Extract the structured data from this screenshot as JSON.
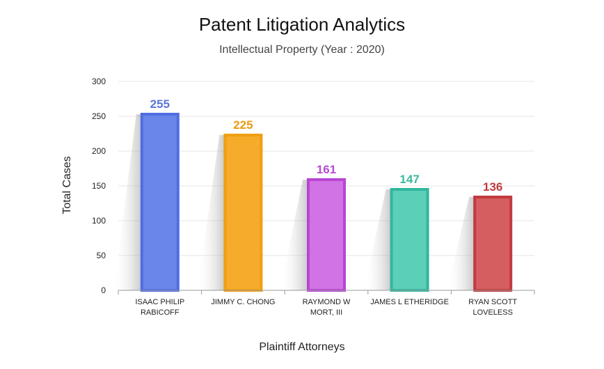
{
  "chart_data": {
    "type": "bar",
    "title": "Patent Litigation Analytics",
    "subtitle": "Intellectual Property (Year : 2020)",
    "xlabel": "Plaintiff Attorneys",
    "ylabel": "Total Cases",
    "categories": [
      [
        "ISAAC PHILIP",
        "RABICOFF"
      ],
      [
        "JIMMY C. CHONG"
      ],
      [
        "RAYMOND W",
        "MORT, III"
      ],
      [
        "JAMES L ETHERIDGE"
      ],
      [
        "RYAN SCOTT",
        "LOVELESS"
      ]
    ],
    "values": [
      255,
      225,
      161,
      147,
      136
    ],
    "ylim": [
      0,
      300
    ],
    "yticks": [
      0,
      50,
      100,
      150,
      200,
      250,
      300
    ],
    "grid": true,
    "colors": [
      {
        "fill": "#6b86ea",
        "stroke": "#4f6ee0",
        "label": "#5a74d8"
      },
      {
        "fill": "#f7ab2a",
        "stroke": "#ef9f12",
        "label": "#e89a10"
      },
      {
        "fill": "#d173e4",
        "stroke": "#b845d3",
        "label": "#b64bd0"
      },
      {
        "fill": "#5ccfb9",
        "stroke": "#31b79e",
        "label": "#3ab8a0"
      },
      {
        "fill": "#d55e60",
        "stroke": "#c13b3f",
        "label": "#c0393d"
      }
    ]
  }
}
